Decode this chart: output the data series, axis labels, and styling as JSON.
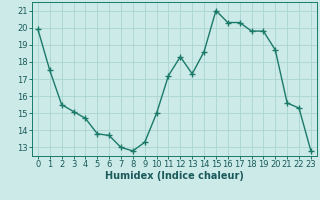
{
  "x": [
    0,
    1,
    2,
    3,
    4,
    5,
    6,
    7,
    8,
    9,
    10,
    11,
    12,
    13,
    14,
    15,
    16,
    17,
    18,
    19,
    20,
    21,
    22,
    23
  ],
  "y": [
    19.9,
    17.5,
    15.5,
    15.1,
    14.7,
    13.8,
    13.7,
    13.0,
    12.8,
    13.3,
    15.0,
    17.2,
    18.3,
    17.3,
    18.6,
    21.0,
    20.3,
    20.3,
    19.8,
    19.8,
    18.7,
    15.6,
    15.3,
    12.8
  ],
  "line_color": "#1a7a6a",
  "marker": "+",
  "markersize": 4,
  "markeredgewidth": 1.0,
  "linewidth": 1.0,
  "xlabel": "Humidex (Indice chaleur)",
  "bg_color": "#cceae8",
  "grid_color": "#aad4d0",
  "xlim": [
    -0.5,
    23.5
  ],
  "ylim": [
    12.5,
    21.5
  ],
  "yticks": [
    13,
    14,
    15,
    16,
    17,
    18,
    19,
    20,
    21
  ],
  "xticks": [
    0,
    1,
    2,
    3,
    4,
    5,
    6,
    7,
    8,
    9,
    10,
    11,
    12,
    13,
    14,
    15,
    16,
    17,
    18,
    19,
    20,
    21,
    22,
    23
  ],
  "tick_color": "#1a5a5a",
  "label_fontsize": 6.0,
  "xlabel_fontsize": 7.0
}
